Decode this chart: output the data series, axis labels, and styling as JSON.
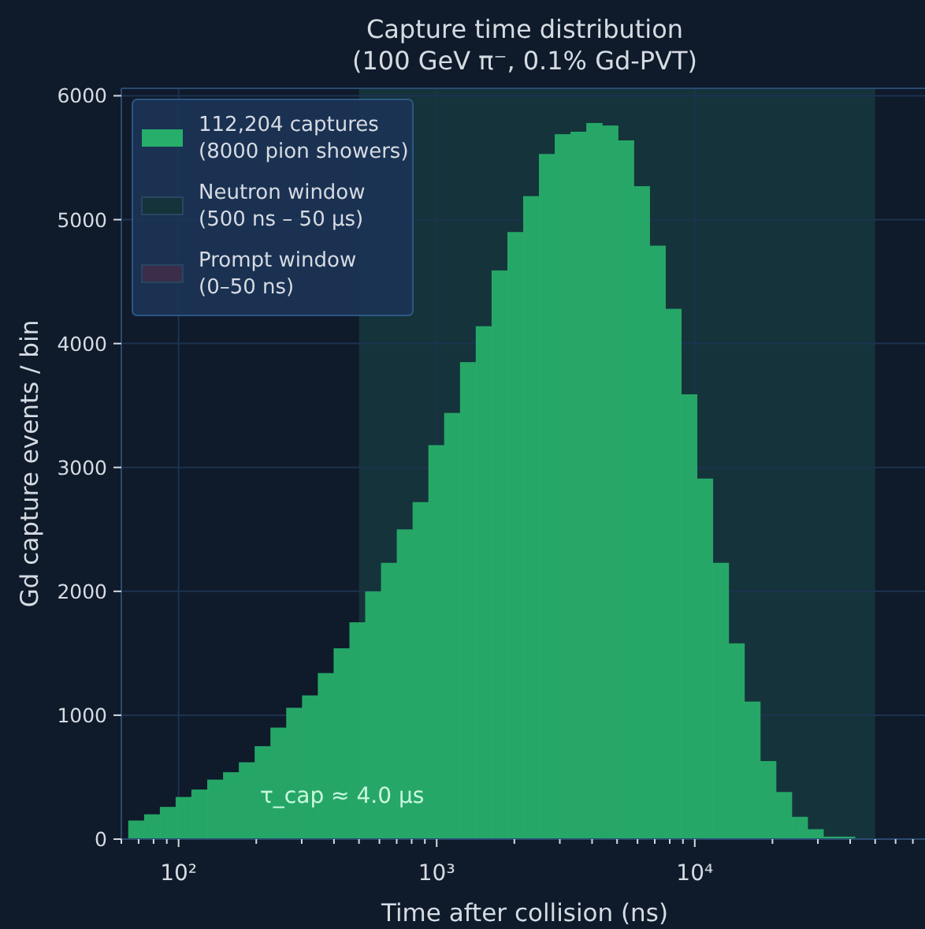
{
  "chart_data": {
    "type": "histogram",
    "title": "Capture time distribution\n(100 GeV π⁻, 0.1% Gd-PVT)",
    "xlabel": "Time after collision (ns)",
    "ylabel": "Gd capture events / bin",
    "bins": [
      63.8,
      73.5,
      84.6,
      97.4,
      112.1,
      129.1,
      148.7,
      171.2,
      197.1,
      226.9,
      261.2,
      300.8,
      346.3,
      398.7,
      459.1,
      528.4,
      608.4,
      700.5,
      806.5,
      928.6,
      1069,
      1231,
      1417,
      1632,
      1879,
      2163,
      2490,
      2867,
      3301,
      3800,
      4375,
      5038,
      5800,
      6678,
      7689,
      8851,
      10190,
      11730,
      13510,
      15550,
      17910,
      20620,
      23740,
      27330,
      31470,
      36220,
      41710
    ],
    "series": [
      {
        "name": "112,204 captures\n(8000 pion showers)",
        "color": "#27ae6a",
        "values": [
          150,
          200,
          260,
          340,
          400,
          480,
          540,
          620,
          750,
          900,
          1060,
          1160,
          1340,
          1540,
          1750,
          2000,
          2230,
          2500,
          2720,
          3180,
          3440,
          3850,
          4140,
          4590,
          4900,
          5190,
          5530,
          5690,
          5710,
          5780,
          5760,
          5640,
          5270,
          4790,
          4280,
          3590,
          2910,
          2230,
          1580,
          1110,
          630,
          380,
          180,
          80,
          20,
          20
        ]
      }
    ],
    "bands": [
      {
        "axis": "x",
        "from": 500,
        "to": 50000,
        "label": "Neutron window\n(500 ns – 50 µs)",
        "color": "#15333a"
      }
    ],
    "annotations": [
      "τ_cap ≈ 4.0 µs",
      "Prompt window\n(0–50 ns)"
    ],
    "log": "x",
    "xlim": [
      60,
      78000
    ],
    "ylim": [
      0,
      6060
    ],
    "xticks": [
      {
        "value": 60,
        "label": null
      },
      {
        "value": 70,
        "label": null
      },
      {
        "value": 80,
        "label": null
      },
      {
        "value": 90,
        "label": null
      },
      {
        "value": 100,
        "label": "10²"
      },
      {
        "value": 200,
        "label": null
      },
      {
        "value": 300,
        "label": null
      },
      {
        "value": 400,
        "label": null
      },
      {
        "value": 500,
        "label": null
      },
      {
        "value": 600,
        "label": null
      },
      {
        "value": 700,
        "label": null
      },
      {
        "value": 800,
        "label": null
      },
      {
        "value": 900,
        "label": null
      },
      {
        "value": 1000,
        "label": "10³"
      },
      {
        "value": 2000,
        "label": null
      },
      {
        "value": 3000,
        "label": null
      },
      {
        "value": 4000,
        "label": null
      },
      {
        "value": 5000,
        "label": null
      },
      {
        "value": 6000,
        "label": null
      },
      {
        "value": 7000,
        "label": null
      },
      {
        "value": 8000,
        "label": null
      },
      {
        "value": 9000,
        "label": null
      },
      {
        "value": 10000,
        "label": "10⁴"
      },
      {
        "value": 20000,
        "label": null
      },
      {
        "value": 30000,
        "label": null
      },
      {
        "value": 40000,
        "label": null
      },
      {
        "value": 50000,
        "label": null
      },
      {
        "value": 60000,
        "label": null
      },
      {
        "value": 70000,
        "label": null
      }
    ],
    "yticks": [
      0,
      1000,
      2000,
      3000,
      4000,
      5000,
      6000
    ],
    "grid": true,
    "legend": "top left"
  }
}
